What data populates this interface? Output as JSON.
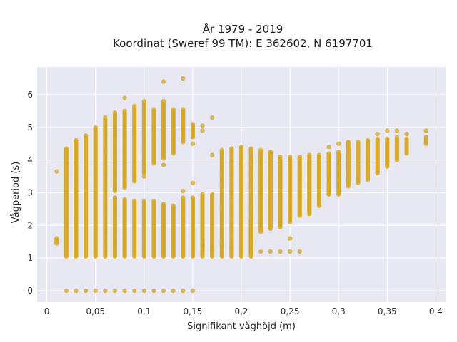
{
  "chart_data": {
    "type": "scatter",
    "title_line1": "År 1979 - 2019",
    "title_line2": "Koordinat (Sweref 99 TM): E 362602, N 6197701",
    "xlabel": "Signifikant våghöjd (m)",
    "ylabel": "Vågperiod (s)",
    "xlim": [
      -0.01,
      0.41
    ],
    "ylim": [
      -0.35,
      6.85
    ],
    "x_ticks": [
      0,
      0.05,
      0.1,
      0.15,
      0.2,
      0.25,
      0.3,
      0.35,
      0.4
    ],
    "x_tick_labels": [
      "0",
      "0,05",
      "0,1",
      "0,15",
      "0,2",
      "0,25",
      "0,3",
      "0,35",
      "0,4"
    ],
    "y_ticks": [
      0,
      1,
      2,
      3,
      4,
      5,
      6
    ],
    "y_tick_labels": [
      "0",
      "1",
      "2",
      "3",
      "4",
      "5",
      "6"
    ],
    "grid": true,
    "background_color": "#e8e8f2",
    "grid_color": "#ffffff",
    "point_color": "#d4a520",
    "columns": [
      {
        "x": 0.01,
        "ranges": [
          [
            1.45,
            1.62
          ]
        ],
        "extra": [
          3.65
        ]
      },
      {
        "x": 0.02,
        "ranges": [
          [
            1.05,
            4.3
          ]
        ],
        "extra": [
          0,
          4.35
        ]
      },
      {
        "x": 0.03,
        "ranges": [
          [
            1.05,
            4.6
          ]
        ],
        "extra": [
          0
        ]
      },
      {
        "x": 0.04,
        "ranges": [
          [
            1.05,
            4.75
          ]
        ],
        "extra": [
          0
        ]
      },
      {
        "x": 0.05,
        "ranges": [
          [
            1.05,
            5.0
          ]
        ],
        "extra": [
          0
        ]
      },
      {
        "x": 0.06,
        "ranges": [
          [
            1.05,
            5.3
          ]
        ],
        "extra": [
          0
        ]
      },
      {
        "x": 0.07,
        "ranges": [
          [
            1.05,
            2.85
          ],
          [
            3.05,
            5.45
          ]
        ],
        "extra": [
          0
        ]
      },
      {
        "x": 0.08,
        "ranges": [
          [
            1.05,
            2.8
          ],
          [
            3.15,
            5.5
          ]
        ],
        "extra": [
          0,
          5.9
        ]
      },
      {
        "x": 0.09,
        "ranges": [
          [
            1.05,
            2.75
          ],
          [
            3.35,
            5.65
          ]
        ],
        "extra": [
          0
        ]
      },
      {
        "x": 0.1,
        "ranges": [
          [
            1.05,
            2.75
          ],
          [
            3.6,
            5.8
          ]
        ],
        "extra": [
          0,
          3.5
        ]
      },
      {
        "x": 0.11,
        "ranges": [
          [
            1.05,
            2.75
          ],
          [
            3.9,
            5.55
          ]
        ],
        "extra": [
          0
        ]
      },
      {
        "x": 0.12,
        "ranges": [
          [
            1.05,
            2.65
          ],
          [
            4.05,
            5.8
          ]
        ],
        "extra": [
          0,
          3.85,
          6.4
        ]
      },
      {
        "x": 0.13,
        "ranges": [
          [
            1.05,
            2.6
          ],
          [
            4.2,
            5.55
          ]
        ],
        "extra": [
          0
        ]
      },
      {
        "x": 0.14,
        "ranges": [
          [
            1.05,
            2.85
          ],
          [
            4.55,
            5.55
          ]
        ],
        "extra": [
          0,
          3.05,
          6.5
        ]
      },
      {
        "x": 0.15,
        "ranges": [
          [
            1.05,
            2.85
          ],
          [
            4.7,
            5.1
          ]
        ],
        "extra": [
          0,
          3.3,
          4.5
        ]
      },
      {
        "x": 0.16,
        "ranges": [
          [
            1.05,
            2.95
          ]
        ],
        "extra": [
          1.4,
          4.9,
          5.05
        ]
      },
      {
        "x": 0.17,
        "ranges": [
          [
            1.05,
            2.95
          ]
        ],
        "extra": [
          1.25,
          4.15,
          5.3
        ]
      },
      {
        "x": 0.18,
        "ranges": [
          [
            1.05,
            4.3
          ]
        ],
        "extra": [
          1.4
        ]
      },
      {
        "x": 0.19,
        "ranges": [
          [
            1.05,
            4.35
          ]
        ],
        "extra": [
          1.3
        ]
      },
      {
        "x": 0.2,
        "ranges": [
          [
            1.05,
            4.4
          ]
        ],
        "extra": []
      },
      {
        "x": 0.21,
        "ranges": [
          [
            1.15,
            2.15
          ],
          [
            1.05,
            4.35
          ]
        ],
        "extra": [
          1.45
        ]
      },
      {
        "x": 0.22,
        "ranges": [
          [
            1.8,
            4.3
          ]
        ],
        "extra": [
          1.2
        ]
      },
      {
        "x": 0.23,
        "ranges": [
          [
            1.9,
            4.25
          ]
        ],
        "extra": [
          1.2
        ]
      },
      {
        "x": 0.24,
        "ranges": [
          [
            1.95,
            4.1
          ]
        ],
        "extra": [
          1.2
        ]
      },
      {
        "x": 0.25,
        "ranges": [
          [
            2.1,
            4.1
          ]
        ],
        "extra": [
          1.2,
          1.6
        ]
      },
      {
        "x": 0.26,
        "ranges": [
          [
            2.3,
            4.1
          ]
        ],
        "extra": [
          1.2
        ]
      },
      {
        "x": 0.27,
        "ranges": [
          [
            2.35,
            4.15
          ]
        ],
        "extra": []
      },
      {
        "x": 0.28,
        "ranges": [
          [
            2.6,
            4.15
          ]
        ],
        "extra": []
      },
      {
        "x": 0.29,
        "ranges": [
          [
            2.95,
            4.2
          ]
        ],
        "extra": [
          4.4
        ]
      },
      {
        "x": 0.3,
        "ranges": [
          [
            2.95,
            4.25
          ]
        ],
        "extra": [
          4.5
        ]
      },
      {
        "x": 0.31,
        "ranges": [
          [
            3.2,
            4.55
          ]
        ],
        "extra": []
      },
      {
        "x": 0.32,
        "ranges": [
          [
            3.3,
            4.55
          ]
        ],
        "extra": []
      },
      {
        "x": 0.33,
        "ranges": [
          [
            3.4,
            4.6
          ]
        ],
        "extra": []
      },
      {
        "x": 0.34,
        "ranges": [
          [
            3.6,
            4.65
          ]
        ],
        "extra": [
          4.8
        ]
      },
      {
        "x": 0.35,
        "ranges": [
          [
            3.8,
            4.65
          ]
        ],
        "extra": [
          4.9
        ]
      },
      {
        "x": 0.36,
        "ranges": [
          [
            4.0,
            4.7
          ]
        ],
        "extra": [
          4.9
        ]
      },
      {
        "x": 0.37,
        "ranges": [
          [
            4.2,
            4.65
          ]
        ],
        "extra": [
          4.8
        ]
      },
      {
        "x": 0.39,
        "ranges": [
          [
            4.5,
            4.7
          ]
        ],
        "extra": [
          4.9
        ]
      }
    ]
  }
}
